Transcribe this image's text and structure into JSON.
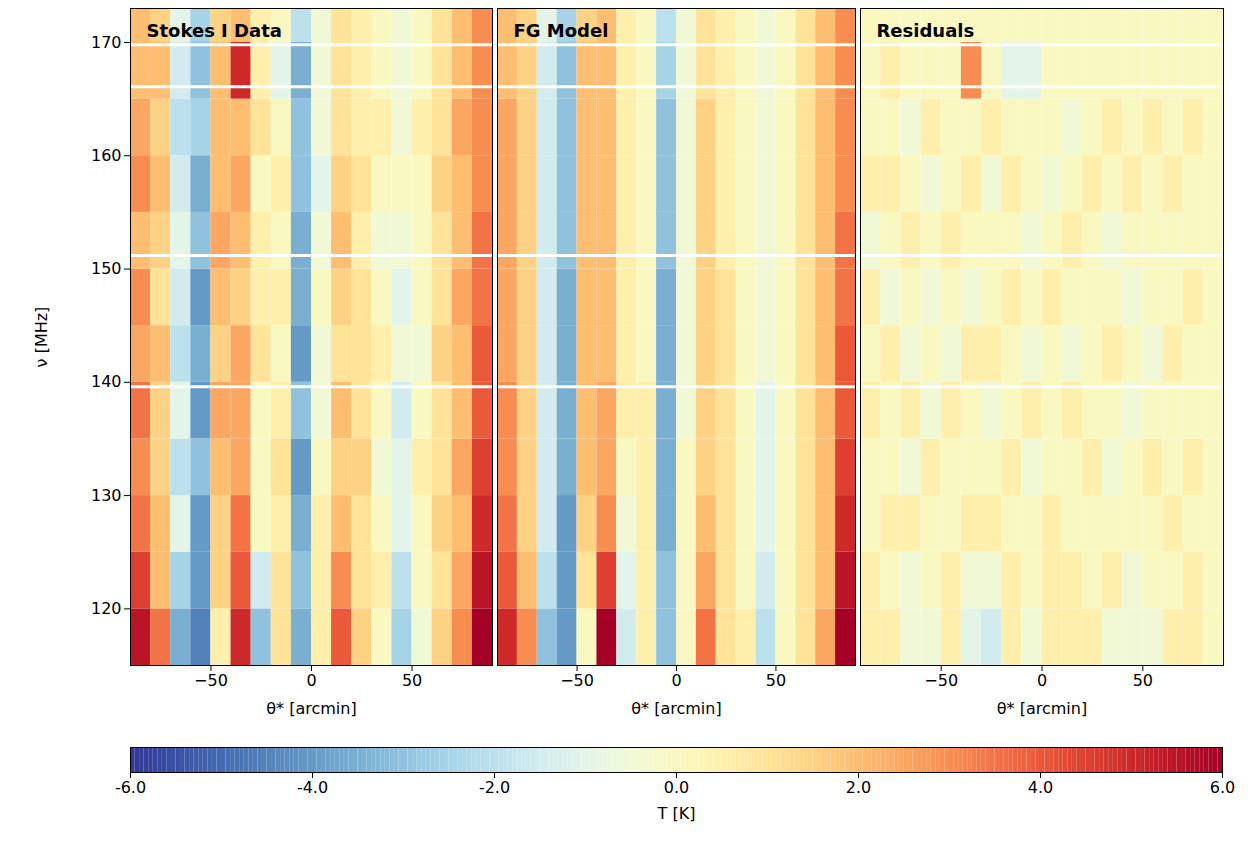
{
  "chart_data": {
    "type": "heatmap",
    "xlabel": "θ* [arcmin]",
    "ylabel": "ν [MHz]",
    "xlim": [
      -90,
      90
    ],
    "ylim": [
      115,
      173
    ],
    "xticks": [
      -50,
      0,
      50
    ],
    "yticks": [
      120,
      130,
      140,
      150,
      160,
      170
    ],
    "x_bins": [
      -90,
      -80,
      -70,
      -60,
      -50,
      -40,
      -30,
      -20,
      -10,
      0,
      10,
      20,
      30,
      40,
      50,
      60,
      70,
      80,
      90
    ],
    "y_bins": [
      115,
      120,
      125,
      130,
      135,
      140,
      145,
      150,
      155,
      160,
      165,
      170,
      173
    ],
    "flagged_channels": [
      139.6,
      151.2,
      166.1,
      169.8
    ],
    "colorbar": {
      "label": "T [K]",
      "range": [
        -6,
        6
      ],
      "ticks": [
        {
          "value": -6,
          "label": "-6.0"
        },
        {
          "value": -4,
          "label": "-4.0"
        },
        {
          "value": -2,
          "label": "-2.0"
        },
        {
          "value": 0,
          "label": "0.0"
        },
        {
          "value": 2,
          "label": "2.0"
        },
        {
          "value": 4,
          "label": "4.0"
        },
        {
          "value": 6,
          "label": "6.0"
        }
      ]
    },
    "panels": [
      {
        "title": "Stokes I Data",
        "values": [
          [
            5.5,
            3.5,
            -3.5,
            -4.5,
            0.5,
            5,
            -3,
            1,
            -3.5,
            0.5,
            4,
            1.5,
            0,
            -2.5,
            -0.5,
            1.5,
            3,
            6
          ],
          [
            4.5,
            2,
            -2.5,
            -4,
            1.5,
            4,
            -1.5,
            1,
            -3,
            0.5,
            3,
            1,
            0.5,
            -2,
            0,
            1,
            2.5,
            5.5
          ],
          [
            3.5,
            2,
            -1,
            -4,
            1.5,
            3.5,
            0,
            0.5,
            -3.5,
            0.5,
            2,
            1,
            0,
            -1,
            0,
            1.5,
            2,
            5
          ],
          [
            3,
            1.5,
            -2,
            -3,
            2,
            2.5,
            0,
            1,
            -4,
            0,
            1.5,
            1.5,
            -0.5,
            -1,
            0.5,
            1,
            2.5,
            4.5
          ],
          [
            3.5,
            1.5,
            -1,
            -4,
            2.5,
            2.5,
            0,
            0.5,
            -3,
            -0.5,
            2,
            1,
            0,
            -1.5,
            0,
            1,
            2,
            4
          ],
          [
            2.5,
            2,
            -2,
            -3.5,
            1.5,
            2.5,
            1,
            0,
            -4,
            -0.5,
            1,
            1,
            0.5,
            -0.5,
            -0.5,
            1.5,
            2,
            4
          ],
          [
            3,
            1,
            -1.5,
            -4,
            2,
            1.5,
            0.5,
            0.5,
            -3.5,
            0,
            1.5,
            1,
            0,
            -1,
            0,
            1,
            2.5,
            3.5
          ],
          [
            2,
            1.5,
            -1,
            -3,
            2.5,
            2,
            0.5,
            0,
            -3.5,
            -0.5,
            2,
            0.5,
            -0.5,
            -0.5,
            0,
            1,
            2,
            3.5
          ],
          [
            3,
            2,
            -1.5,
            -3.5,
            2,
            2.5,
            0,
            0.5,
            -3,
            -1,
            1.5,
            1,
            0,
            0,
            0,
            1.5,
            2,
            3
          ],
          [
            2.5,
            1.5,
            -2,
            -2.5,
            2,
            2,
            1,
            0,
            -3,
            -0.5,
            1,
            0.5,
            0.5,
            -0.5,
            0.5,
            1,
            2.5,
            3
          ],
          [
            2,
            2,
            -1.5,
            -3,
            2,
            5,
            0.5,
            -1,
            -3.5,
            -0.5,
            1,
            0.5,
            0,
            -0.5,
            0,
            1,
            2,
            3
          ],
          [
            2,
            1.5,
            -1,
            -2.5,
            1.5,
            2,
            0.5,
            0,
            -2,
            -0.5,
            1,
            0.5,
            0,
            -0.5,
            0,
            1,
            2,
            3
          ]
        ]
      },
      {
        "title": "FG Model",
        "tick_labels": "x",
        "values": [
          [
            5,
            3,
            -3,
            -4,
            0,
            6,
            -1.5,
            0.5,
            -3,
            0,
            3.5,
            1,
            0.5,
            -2,
            0,
            1,
            2.5,
            6
          ],
          [
            4,
            2,
            -2,
            -4,
            1,
            4.5,
            -1,
            0.5,
            -3,
            0,
            2.5,
            1,
            0,
            -1.5,
            0,
            1,
            2,
            5.5
          ],
          [
            3.5,
            1.5,
            -1.5,
            -4,
            1.5,
            3,
            -0.5,
            0.5,
            -3.5,
            0,
            2,
            1,
            0,
            -1,
            0,
            1,
            2,
            5
          ],
          [
            3,
            1.5,
            -1.5,
            -3.5,
            2,
            2.5,
            0,
            0.5,
            -3.5,
            0,
            1.5,
            1,
            0,
            -1,
            0,
            1,
            2,
            4.5
          ],
          [
            3,
            1.5,
            -1.5,
            -3.5,
            2,
            2.5,
            0.5,
            0.5,
            -3.5,
            -0.5,
            1.5,
            1,
            0,
            -1,
            0,
            1,
            2,
            4
          ],
          [
            2.5,
            1.5,
            -1.5,
            -3.5,
            2,
            2,
            0.5,
            0,
            -3.5,
            -0.5,
            1.5,
            1,
            0,
            -0.5,
            0,
            1,
            2,
            4
          ],
          [
            2.5,
            1.5,
            -1.5,
            -3.5,
            2,
            2,
            0.5,
            0,
            -3.5,
            -0.5,
            1.5,
            1,
            0,
            -0.5,
            0,
            1,
            2,
            3.5
          ],
          [
            2.5,
            1.5,
            -1.5,
            -3,
            2,
            2,
            0.5,
            0,
            -3,
            -0.5,
            1.5,
            0.5,
            0,
            -0.5,
            0,
            1,
            2,
            3.5
          ],
          [
            2.5,
            1.5,
            -1.5,
            -3,
            2,
            2,
            0.5,
            0,
            -3,
            -0.5,
            1.5,
            0.5,
            0,
            -0.5,
            0,
            1,
            2,
            3
          ],
          [
            2.5,
            1.5,
            -1.5,
            -3,
            2,
            2,
            0.5,
            0,
            -3,
            -0.5,
            1.5,
            0.5,
            0,
            -0.5,
            0,
            1,
            2,
            3
          ],
          [
            2,
            1.5,
            -1.5,
            -3,
            2,
            2,
            0.5,
            0,
            -2.5,
            -0.5,
            1,
            0.5,
            0,
            -0.5,
            0,
            1,
            2,
            3
          ],
          [
            2,
            1.5,
            -1,
            -2.5,
            1.5,
            2,
            0.5,
            0,
            -2,
            -0.5,
            1,
            0.5,
            0,
            -0.5,
            0,
            1,
            2,
            3
          ]
        ]
      },
      {
        "title": "Residuals",
        "tick_labels": "x",
        "values": [
          [
            0.5,
            0.5,
            -0.5,
            -0.5,
            0.5,
            -1,
            -1.5,
            0.5,
            -0.5,
            0.5,
            0.5,
            0.5,
            -0.5,
            -0.5,
            -0.5,
            0.5,
            0.5,
            0
          ],
          [
            0.5,
            0,
            -0.5,
            0,
            0.5,
            -0.5,
            -0.5,
            0.5,
            0,
            0.5,
            0.5,
            0,
            0.5,
            -0.5,
            0,
            0,
            0.5,
            0
          ],
          [
            0,
            0.5,
            0.5,
            0,
            0,
            0.5,
            0.5,
            0,
            0,
            0.5,
            0,
            0,
            0,
            0,
            0,
            0.5,
            0,
            0
          ],
          [
            0,
            0,
            -0.5,
            0.5,
            0,
            0,
            0,
            0.5,
            -0.5,
            0,
            0,
            0.5,
            -0.5,
            0,
            0.5,
            0,
            0.5,
            0
          ],
          [
            0.5,
            0,
            0.5,
            -0.5,
            0.5,
            0,
            -0.5,
            0,
            0.5,
            0,
            0.5,
            0,
            0,
            -0.5,
            0,
            0,
            0,
            0
          ],
          [
            0,
            0.5,
            -0.5,
            0,
            -0.5,
            0.5,
            0.5,
            0,
            -0.5,
            0,
            -0.5,
            0,
            0.5,
            0,
            -0.5,
            0.5,
            0,
            0
          ],
          [
            0.5,
            -0.5,
            0,
            -0.5,
            0,
            -0.5,
            0,
            0.5,
            0,
            0.5,
            0,
            0,
            0,
            -0.5,
            0,
            0,
            0.5,
            0
          ],
          [
            -0.5,
            0,
            0.5,
            0,
            0.5,
            0,
            0,
            0,
            -0.5,
            0,
            0.5,
            0,
            -0.5,
            0,
            0,
            0,
            0,
            0
          ],
          [
            0.5,
            0.5,
            0,
            -0.5,
            0,
            0.5,
            -0.5,
            0.5,
            0,
            -0.5,
            0,
            0.5,
            0,
            0.5,
            0,
            0.5,
            0,
            0
          ],
          [
            0,
            0,
            -0.5,
            0.5,
            0,
            0,
            0.5,
            0,
            0,
            0,
            -0.5,
            0,
            0.5,
            0,
            0.5,
            0,
            0.5,
            0
          ],
          [
            0,
            0.5,
            0,
            0,
            0,
            3,
            0,
            -1,
            -1,
            0,
            0,
            0,
            0,
            0,
            0,
            0,
            0,
            0
          ],
          [
            0,
            0,
            0,
            0,
            0,
            0,
            0,
            0,
            0,
            0,
            0,
            0,
            0,
            0,
            0,
            0,
            0,
            0
          ]
        ]
      }
    ]
  }
}
